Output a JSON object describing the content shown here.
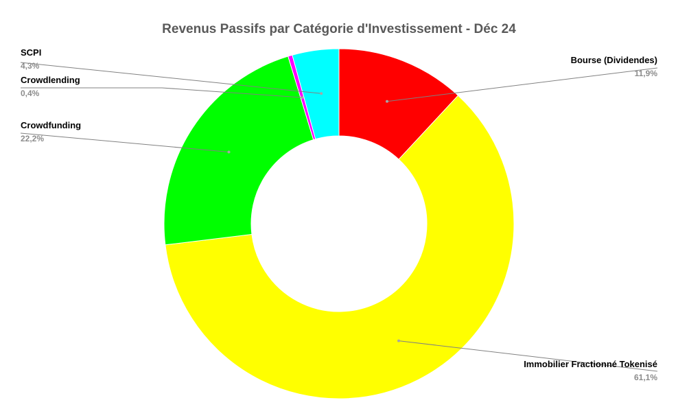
{
  "chart_data": {
    "type": "pie",
    "variant": "doughnut",
    "title": "Revenus Passifs par Catégorie d'Investissement - Déc 24",
    "start_angle_deg": 0,
    "direction": "clockwise",
    "slices": [
      {
        "name": "Bourse (Dividendes)",
        "value": 11.9,
        "label": "11,9%",
        "color": "#FF0000"
      },
      {
        "name": "Immobilier Fractionné Tokenisé",
        "value": 61.1,
        "label": "61,1%",
        "color": "#FFFF00"
      },
      {
        "name": "Crowdfunding",
        "value": 22.2,
        "label": "22,2%",
        "color": "#00FF00"
      },
      {
        "name": "Crowdlending",
        "value": 0.4,
        "label": "0,4%",
        "color": "#FF00FF"
      },
      {
        "name": "SCPI",
        "value": 4.3,
        "label": "4,3%",
        "color": "#00FFFF"
      }
    ],
    "legend": "none"
  }
}
